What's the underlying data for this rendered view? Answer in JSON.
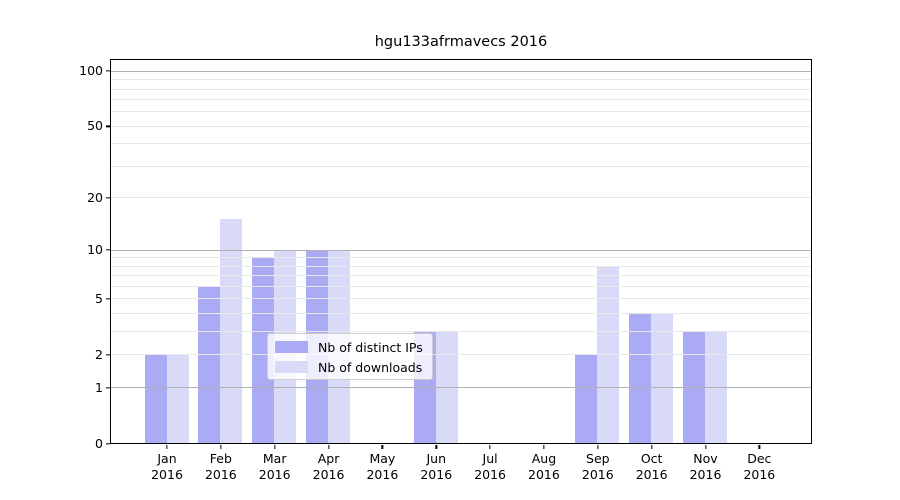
{
  "figure": {
    "title": "hgu133afrmavecs 2016"
  },
  "chart_data": {
    "type": "bar",
    "title": "hgu133afrmavecs 2016",
    "categories": [
      "Jan 2016",
      "Feb 2016",
      "Mar 2016",
      "Apr 2016",
      "May 2016",
      "Jun 2016",
      "Jul 2016",
      "Aug 2016",
      "Sep 2016",
      "Oct 2016",
      "Nov 2016",
      "Dec 2016"
    ],
    "series": [
      {
        "name": "Nb of distinct IPs",
        "key": "distinct-ips",
        "color": "#aaaaf5",
        "values": [
          2,
          6,
          9,
          10,
          0,
          3,
          0,
          0,
          2,
          4,
          3,
          0
        ]
      },
      {
        "name": "Nb of downloads",
        "key": "downloads",
        "color": "#d9d9f8",
        "values": [
          2,
          15,
          10,
          10,
          0,
          3,
          0,
          0,
          8,
          4,
          3,
          0
        ]
      }
    ],
    "yscale": "log1p",
    "ylim": [
      0,
      115
    ],
    "yticks": [
      0,
      1,
      2,
      5,
      10,
      20,
      50,
      100
    ],
    "ytick_labels": [
      "0",
      "1",
      "2",
      "5",
      "10",
      "20",
      "50",
      "100"
    ],
    "grid": {
      "major_ticks": [
        1,
        10,
        100
      ],
      "minor_ticks": [
        2,
        3,
        4,
        5,
        6,
        7,
        8,
        9,
        20,
        30,
        40,
        50,
        60,
        70,
        80,
        90
      ],
      "major_color": "#b0b0b0",
      "minor_color": "#e8e8e8"
    },
    "legend_position": "lower center"
  }
}
